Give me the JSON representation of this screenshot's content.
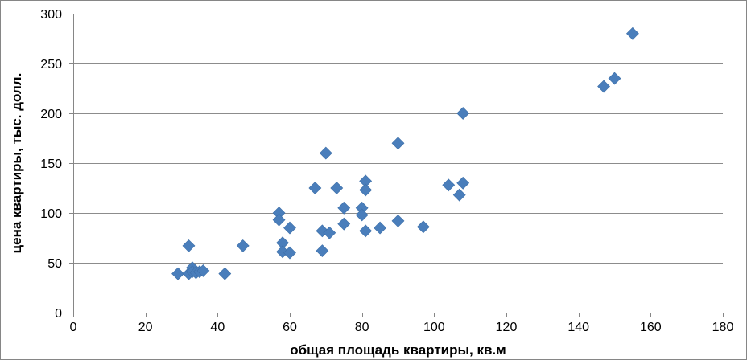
{
  "chart_data": {
    "type": "scatter",
    "xlabel": "общая площадь квартиры, кв.м",
    "ylabel": "цена квартиры, тыс. долл.",
    "xlim": [
      0,
      180
    ],
    "ylim": [
      0,
      300
    ],
    "x_ticks": [
      0,
      20,
      40,
      60,
      80,
      100,
      120,
      140,
      160,
      180
    ],
    "y_ticks": [
      0,
      50,
      100,
      150,
      200,
      250,
      300
    ],
    "grid": "horizontal",
    "legend": "none",
    "marker": "diamond",
    "colors": {
      "marker": "#4a7ebb",
      "grid": "#8c8c8c",
      "axis": "#868686"
    },
    "series": [
      {
        "points": [
          [
            29,
            39
          ],
          [
            32,
            67
          ],
          [
            32,
            39
          ],
          [
            33,
            45
          ],
          [
            33,
            41
          ],
          [
            34,
            40
          ],
          [
            35,
            41
          ],
          [
            36,
            42
          ],
          [
            42,
            39
          ],
          [
            47,
            67
          ],
          [
            57,
            100
          ],
          [
            57,
            93
          ],
          [
            58,
            70
          ],
          [
            58,
            61
          ],
          [
            60,
            85
          ],
          [
            60,
            60
          ],
          [
            67,
            125
          ],
          [
            69,
            62
          ],
          [
            69,
            82
          ],
          [
            70,
            160
          ],
          [
            71,
            80
          ],
          [
            73,
            125
          ],
          [
            75,
            105
          ],
          [
            75,
            89
          ],
          [
            80,
            105
          ],
          [
            80,
            98
          ],
          [
            81,
            132
          ],
          [
            81,
            123
          ],
          [
            81,
            82
          ],
          [
            85,
            85
          ],
          [
            90,
            170
          ],
          [
            90,
            92
          ],
          [
            97,
            86
          ],
          [
            104,
            128
          ],
          [
            107,
            118
          ],
          [
            108,
            130
          ],
          [
            108,
            200
          ],
          [
            147,
            227
          ],
          [
            150,
            235
          ],
          [
            155,
            280
          ]
        ]
      }
    ]
  }
}
